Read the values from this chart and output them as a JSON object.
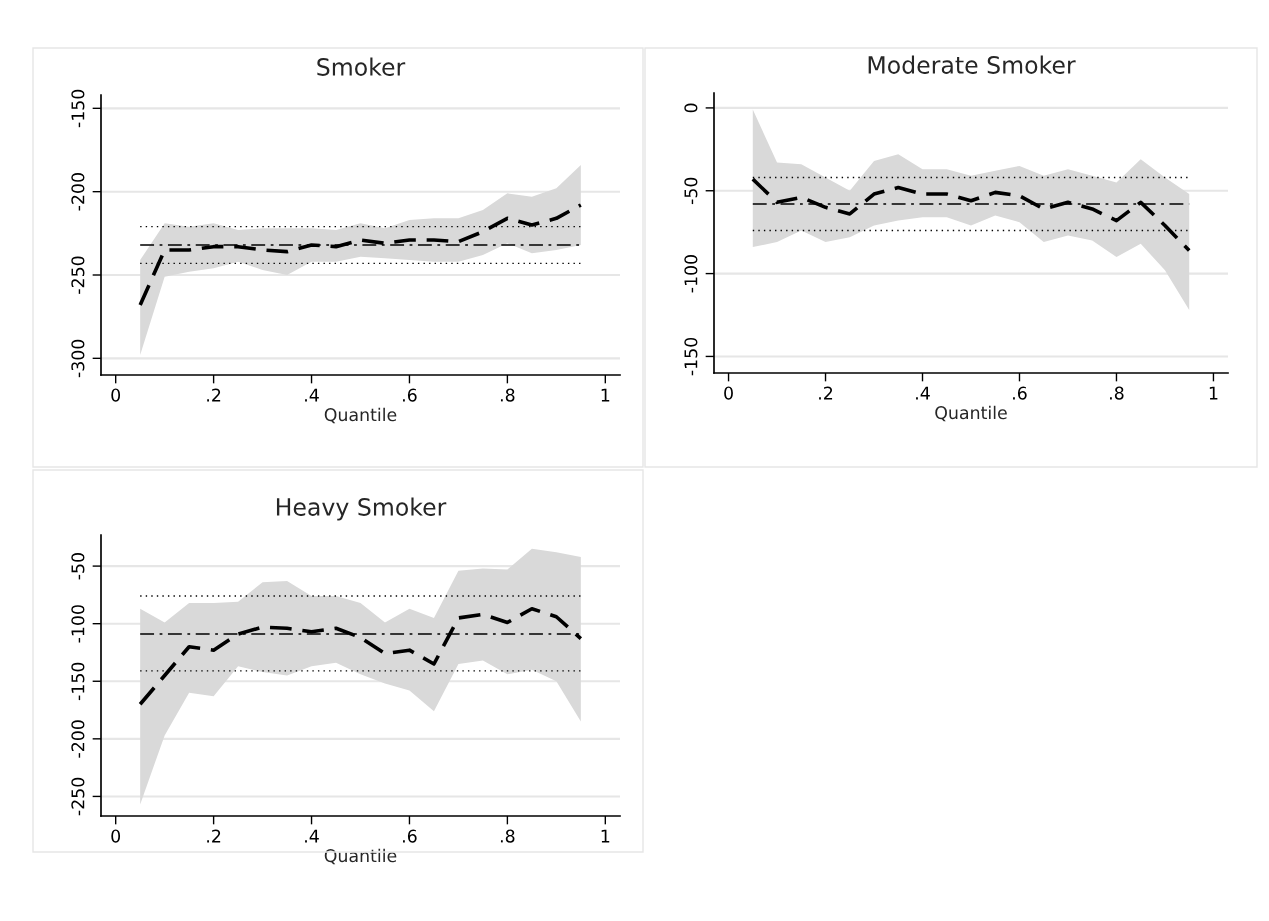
{
  "chart_data": [
    {
      "type": "line",
      "title": "Smoker",
      "xlabel": "Quantile",
      "x": [
        0.05,
        0.1,
        0.15,
        0.2,
        0.25,
        0.3,
        0.35,
        0.4,
        0.45,
        0.5,
        0.55,
        0.6,
        0.65,
        0.7,
        0.75,
        0.8,
        0.85,
        0.9,
        0.95
      ],
      "series": [
        {
          "color": "#000000",
          "line_style": "dashed",
          "values": [
            -268,
            -235,
            -235,
            -233,
            -233,
            -235,
            -236,
            -232,
            -233,
            -229,
            -231,
            -229,
            -229,
            -230,
            -224,
            -216,
            -220,
            -216,
            -208
          ],
          "lower": [
            -298,
            -251,
            -248,
            -246,
            -242,
            -247,
            -250,
            -242,
            -242,
            -239,
            -240,
            -241,
            -242,
            -242,
            -238,
            -231,
            -237,
            -235,
            -232
          ],
          "upper": [
            -241,
            -219,
            -221,
            -219,
            -223,
            -222,
            -222,
            -222,
            -223,
            -219,
            -222,
            -217,
            -216,
            -216,
            -211,
            -201,
            -203,
            -198,
            -184
          ]
        }
      ],
      "ref_lines": [
        {
          "axis": "y",
          "value": -232,
          "line_style": "dashed",
          "color": "#000000"
        },
        {
          "axis": "y",
          "value": -221,
          "line_style": "dotted",
          "color": "#000000"
        },
        {
          "axis": "y",
          "value": -243,
          "line_style": "dotted",
          "color": "#000000"
        }
      ],
      "xlim": [
        -0.03,
        1.03
      ],
      "xticks": [
        0,
        {
          "value": 0.2,
          "label": ".2"
        },
        {
          "value": 0.4,
          "label": ".4"
        },
        {
          "value": 0.6,
          "label": ".6"
        },
        {
          "value": 0.8,
          "label": ".8"
        },
        1
      ],
      "ylim": [
        -310,
        -142
      ],
      "yticks": [
        -300,
        -250,
        -200,
        -150
      ],
      "grid": "y"
    },
    {
      "type": "line",
      "title": "Moderate Smoker",
      "xlabel": "Quantile",
      "x": [
        0.05,
        0.1,
        0.15,
        0.2,
        0.25,
        0.3,
        0.35,
        0.4,
        0.45,
        0.5,
        0.55,
        0.6,
        0.65,
        0.7,
        0.75,
        0.8,
        0.85,
        0.9,
        0.95
      ],
      "series": [
        {
          "color": "#000000",
          "line_style": "dashed",
          "values": [
            -43,
            -57,
            -54,
            -60,
            -64,
            -52,
            -48,
            -52,
            -52,
            -56,
            -51,
            -53,
            -61,
            -57,
            -61,
            -68,
            -57,
            -71,
            -86
          ],
          "lower": [
            -84,
            -81,
            -74,
            -81,
            -78,
            -71,
            -68,
            -66,
            -66,
            -71,
            -65,
            -69,
            -81,
            -77,
            -80,
            -90,
            -82,
            -98,
            -122
          ],
          "upper": [
            -1,
            -33,
            -34,
            -42,
            -50,
            -32,
            -28,
            -37,
            -37,
            -41,
            -38,
            -35,
            -41,
            -37,
            -41,
            -45,
            -31,
            -42,
            -52
          ]
        }
      ],
      "ref_lines": [
        {
          "axis": "y",
          "value": -58,
          "line_style": "dashed",
          "color": "#000000"
        },
        {
          "axis": "y",
          "value": -42,
          "line_style": "dotted",
          "color": "#000000"
        },
        {
          "axis": "y",
          "value": -74,
          "line_style": "dotted",
          "color": "#000000"
        }
      ],
      "xlim": [
        -0.03,
        1.03
      ],
      "xticks": [
        0,
        {
          "value": 0.2,
          "label": ".2"
        },
        {
          "value": 0.4,
          "label": ".4"
        },
        {
          "value": 0.6,
          "label": ".6"
        },
        {
          "value": 0.8,
          "label": ".8"
        },
        1
      ],
      "ylim": [
        -160,
        9
      ],
      "yticks": [
        -150,
        -100,
        -50,
        0
      ],
      "grid": "y"
    },
    {
      "type": "line",
      "title": "Heavy Smoker",
      "xlabel": "Quantile",
      "x": [
        0.05,
        0.1,
        0.15,
        0.2,
        0.25,
        0.3,
        0.35,
        0.4,
        0.45,
        0.5,
        0.55,
        0.6,
        0.65,
        0.7,
        0.75,
        0.8,
        0.85,
        0.9,
        0.95
      ],
      "series": [
        {
          "color": "#000000",
          "line_style": "dashed",
          "values": [
            -170,
            -145,
            -120,
            -123,
            -109,
            -103,
            -104,
            -107,
            -104,
            -112,
            -126,
            -123,
            -135,
            -95,
            -92,
            -99,
            -87,
            -94,
            -113
          ],
          "lower": [
            -257,
            -197,
            -160,
            -163,
            -137,
            -142,
            -145,
            -137,
            -134,
            -144,
            -152,
            -158,
            -176,
            -135,
            -132,
            -144,
            -140,
            -150,
            -185
          ],
          "upper": [
            -87,
            -99,
            -82,
            -82,
            -81,
            -64,
            -63,
            -76,
            -76,
            -82,
            -99,
            -87,
            -95,
            -54,
            -52,
            -53,
            -35,
            -38,
            -42
          ]
        }
      ],
      "ref_lines": [
        {
          "axis": "y",
          "value": -109,
          "line_style": "dashed",
          "color": "#000000"
        },
        {
          "axis": "y",
          "value": -76,
          "line_style": "dotted",
          "color": "#000000"
        },
        {
          "axis": "y",
          "value": -141,
          "line_style": "dotted",
          "color": "#000000"
        }
      ],
      "xlim": [
        -0.03,
        1.03
      ],
      "xticks": [
        0,
        {
          "value": 0.2,
          "label": ".2"
        },
        {
          "value": 0.4,
          "label": ".4"
        },
        {
          "value": 0.6,
          "label": ".6"
        },
        {
          "value": 0.8,
          "label": ".8"
        },
        1
      ],
      "ylim": [
        -267,
        -23
      ],
      "yticks": [
        -250,
        -200,
        -150,
        -100,
        -50
      ],
      "grid": "y"
    }
  ]
}
